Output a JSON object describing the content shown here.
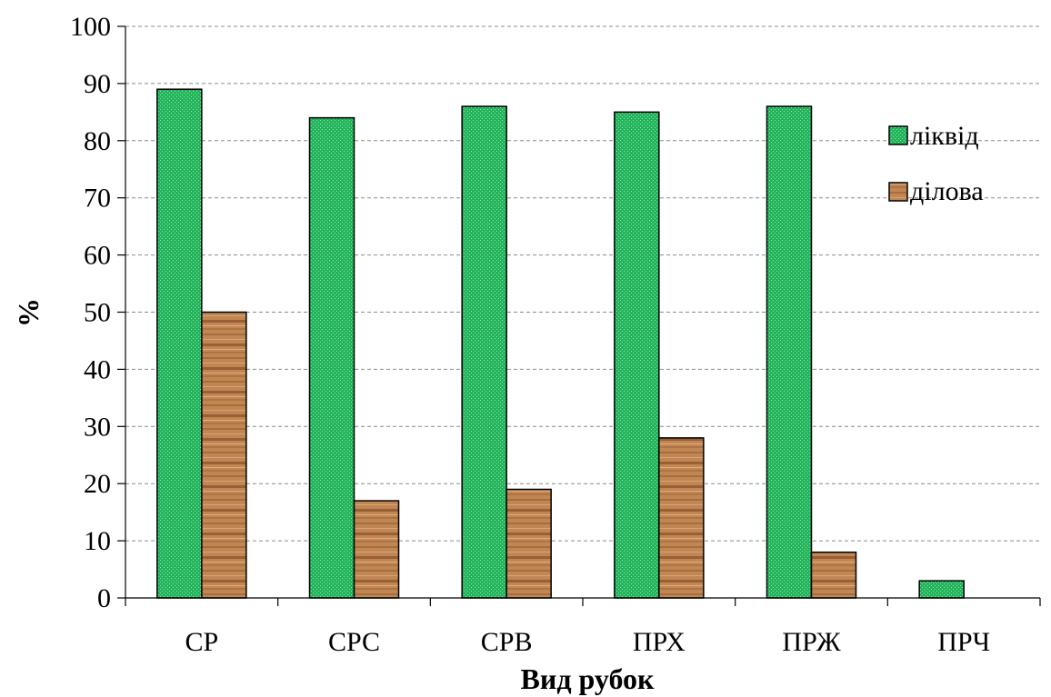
{
  "chart_data": {
    "type": "bar",
    "xlabel": "Вид рубок",
    "ylabel": "%",
    "ylim": [
      0,
      100
    ],
    "y_ticks": [
      "0",
      "10",
      "20",
      "30",
      "40",
      "50",
      "60",
      "70",
      "80",
      "90",
      "100"
    ],
    "grid": "horizontal dashed",
    "legend_position": "top-right",
    "categories": [
      "СР",
      "СРС",
      "СРВ",
      "ПРХ",
      "ПРЖ",
      "ПРЧ"
    ],
    "series": [
      {
        "name": "ліквід",
        "color": "#22b45a",
        "values": [
          89,
          84,
          86,
          85,
          86,
          3
        ]
      },
      {
        "name": "ділова",
        "color": "#c08654",
        "values": [
          50,
          17,
          19,
          28,
          8,
          0
        ]
      }
    ]
  }
}
